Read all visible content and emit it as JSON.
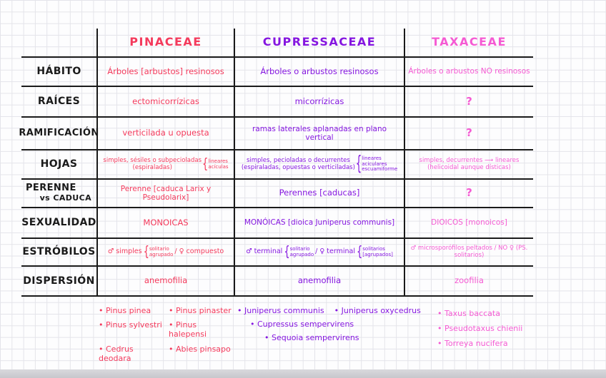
{
  "colors": {
    "ink": "#1a1a1a",
    "pinaceae": "#f43a5c",
    "cupressaceae": "#8516e0",
    "taxaceae": "#f55ad3"
  },
  "header": {
    "columns": [
      "PINACEAE",
      "CUPRESSACEAE",
      "TAXACEAE"
    ]
  },
  "rows": [
    {
      "label": "HÁBITO",
      "cells": [
        {
          "text": "Árboles [arbustos] resinosos"
        },
        {
          "text": "Árboles o arbustos resinosos"
        },
        {
          "text": "Árboles o arbustos NO resinosos"
        }
      ]
    },
    {
      "label": "RAÍCES",
      "cells": [
        {
          "text": "ectomicorrízicas"
        },
        {
          "text": "micorrízicas"
        },
        {
          "text": "?"
        }
      ]
    },
    {
      "label": "RAMIFICACIÓN",
      "cells": [
        {
          "text": "verticilada u opuesta"
        },
        {
          "text": "ramas laterales aplanadas en plano vertical"
        },
        {
          "text": "?"
        }
      ]
    },
    {
      "label": "HOJAS",
      "cells": [
        {
          "pre": "simples, sésiles o subpecioladas",
          "brace": [
            "lineares",
            "acículas"
          ],
          "paren": "(espiraladas)"
        },
        {
          "pre": "simples, pecioladas o decurrentes",
          "brace": [
            "lineares",
            "aciculares",
            "escuamiforme"
          ],
          "paren": "(espiraladas, opuestas o verticiladas)"
        },
        {
          "pre": "simples, decurrentes ⟶ lineares",
          "paren": "(helicoidal aunque dísticas)"
        }
      ]
    },
    {
      "label": "PERENNE",
      "label_sub": "vs CADUCA",
      "cells": [
        {
          "text": "Perenne [caduca Larix y Pseudolarix]"
        },
        {
          "text": "Perennes [caducas]"
        },
        {
          "text": "?"
        }
      ]
    },
    {
      "label": "SEXUALIDAD",
      "cells": [
        {
          "text": "MONOICAS"
        },
        {
          "text": "MONÓICAS [dioica Juniperus communis]"
        },
        {
          "text": "DIOICOS [monoicos]"
        }
      ]
    },
    {
      "label": "ESTRÓBILOS",
      "cells": [
        {
          "pre": "♂ simples",
          "brace": [
            "solitario",
            "agrupado"
          ],
          "post": "/ ♀ compuesto"
        },
        {
          "pre": "♂ terminal",
          "brace": [
            "solitario",
            "agrupado"
          ],
          "mid": "/ ♀ terminal",
          "brace2": [
            "solitarios",
            "[agrupados]"
          ]
        },
        {
          "text": "♂ microsporófilos peltados / NO ♀ (PS. solitarios)"
        }
      ]
    },
    {
      "label": "DISPERSIÓN",
      "cells": [
        {
          "text": "anemofilia"
        },
        {
          "text": "anemofilia"
        },
        {
          "text": "zoofilia"
        }
      ]
    }
  ],
  "species": {
    "pinaceae": {
      "col_a": [
        "Pinus pinea",
        "Pinus sylvestri",
        "Cedrus deodara"
      ],
      "col_b": [
        "Pinus pinaster",
        "Pinus halepensi",
        "Abies pinsapo"
      ]
    },
    "cupressaceae": {
      "row1": [
        "Juniperus communis",
        "Juniperus oxycedrus"
      ],
      "row2": "Cupressus sempervirens",
      "row3": "Sequoia sempervirens"
    },
    "taxaceae": [
      "Taxus baccata",
      "Pseudotaxus chienii",
      "Torreya nucifera"
    ]
  }
}
